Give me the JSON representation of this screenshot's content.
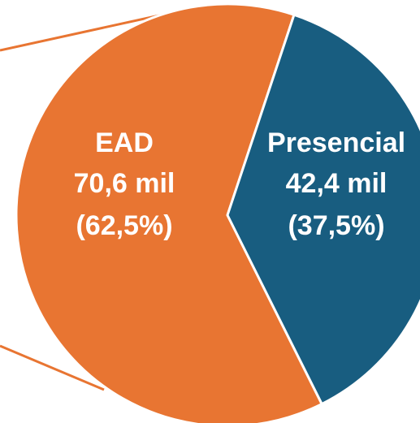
{
  "chart_data": {
    "type": "pie",
    "slices": [
      {
        "name": "EAD",
        "value_text": "70,6 mil",
        "percent_text": "(62,5%)",
        "value": 70.6,
        "percent": 62.5,
        "color": "#E87532"
      },
      {
        "name": "Presencial",
        "value_text": "42,4 mil",
        "percent_text": "(37,5%)",
        "value": 42.4,
        "percent": 37.5,
        "color": "#185D80"
      }
    ],
    "title": "",
    "legend": "none",
    "connector_color": "#E87532"
  }
}
